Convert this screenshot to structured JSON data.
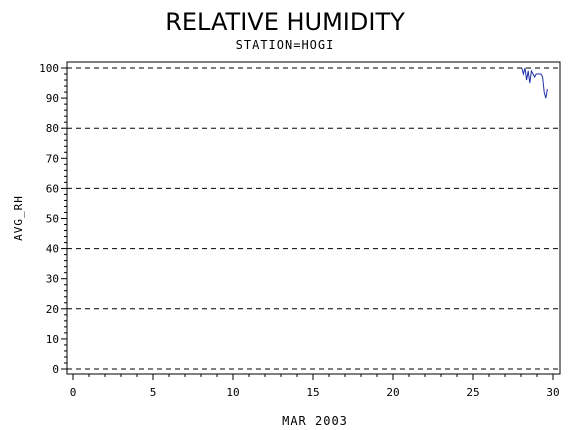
{
  "chart_data": {
    "type": "line",
    "title": "RELATIVE HUMIDITY",
    "subtitle": "STATION=HOGI",
    "xlabel": "MAR 2003",
    "ylabel": "AVG_RH",
    "xlim": [
      0,
      30
    ],
    "ylim": [
      0,
      100
    ],
    "x_ticks": [
      0,
      5,
      10,
      15,
      20,
      25,
      30
    ],
    "y_ticks": [
      0,
      10,
      20,
      30,
      40,
      50,
      60,
      70,
      80,
      90,
      100
    ],
    "grid_y": [
      0,
      20,
      40,
      60,
      80,
      100
    ],
    "line_color": "#1f2fa8",
    "series": [
      {
        "x": [
          28.05,
          28.15,
          28.25,
          28.35,
          28.45,
          28.55,
          28.65,
          28.75,
          28.85,
          28.95,
          29.05,
          29.15,
          29.25,
          29.35,
          29.45,
          29.55,
          29.65
        ],
        "y": [
          100,
          98,
          100,
          96,
          99,
          95,
          99,
          98,
          97,
          98,
          98,
          98,
          98,
          97,
          92,
          90,
          93
        ]
      }
    ]
  }
}
